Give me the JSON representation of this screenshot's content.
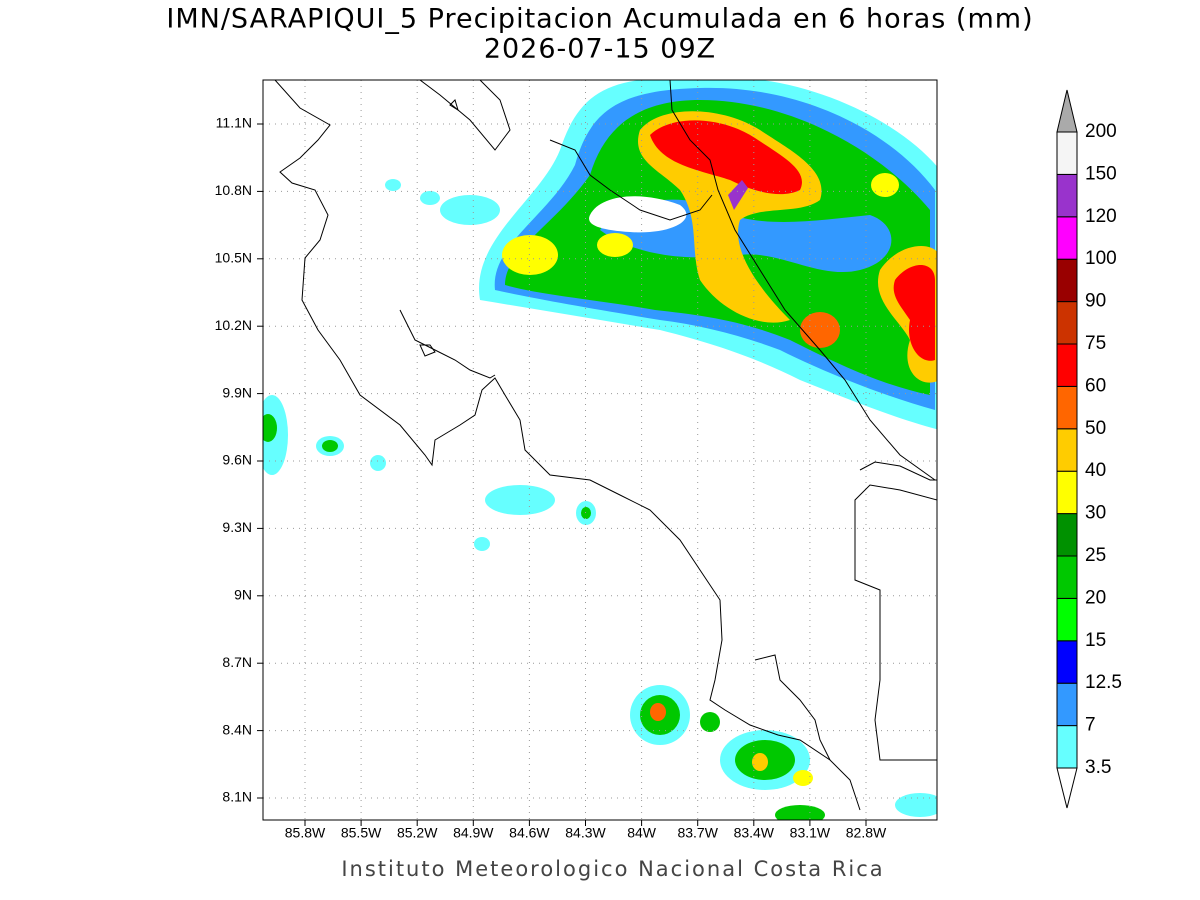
{
  "title": "IMN/SARAPIQUI_5 Precipitacion Acumulada en 6 horas (mm)",
  "subtitle": "2026-07-15 09Z",
  "map": {
    "lat_labels": [
      "11.1N",
      "10.8N",
      "10.5N",
      "10.2N",
      "9.9N",
      "9.6N",
      "9.3N",
      "9N",
      "8.7N",
      "8.4N",
      "8.1N"
    ],
    "lon_labels": [
      "85.8W",
      "85.5W",
      "85.2W",
      "84.9W",
      "84.6W",
      "84.3W",
      "84W",
      "83.7W",
      "83.4W",
      "83.1W",
      "82.8W"
    ]
  },
  "colorbar": {
    "levels": [
      3.5,
      7,
      12.5,
      15,
      20,
      25,
      30,
      40,
      50,
      60,
      75,
      90,
      100,
      120,
      150,
      200
    ],
    "colors": [
      "#66ffff",
      "#3399ff",
      "#0000ff",
      "#00ff00",
      "#00c800",
      "#009100",
      "#ffff00",
      "#ffcc00",
      "#ff6600",
      "#ff0000",
      "#cc3300",
      "#990000",
      "#ff00ff",
      "#9933cc",
      "#f5f5f5"
    ],
    "under_color": "#ffffff",
    "over_color": "#aaaaaa"
  },
  "footer": "Instituto Meteorologico Nacional Costa Rica"
}
